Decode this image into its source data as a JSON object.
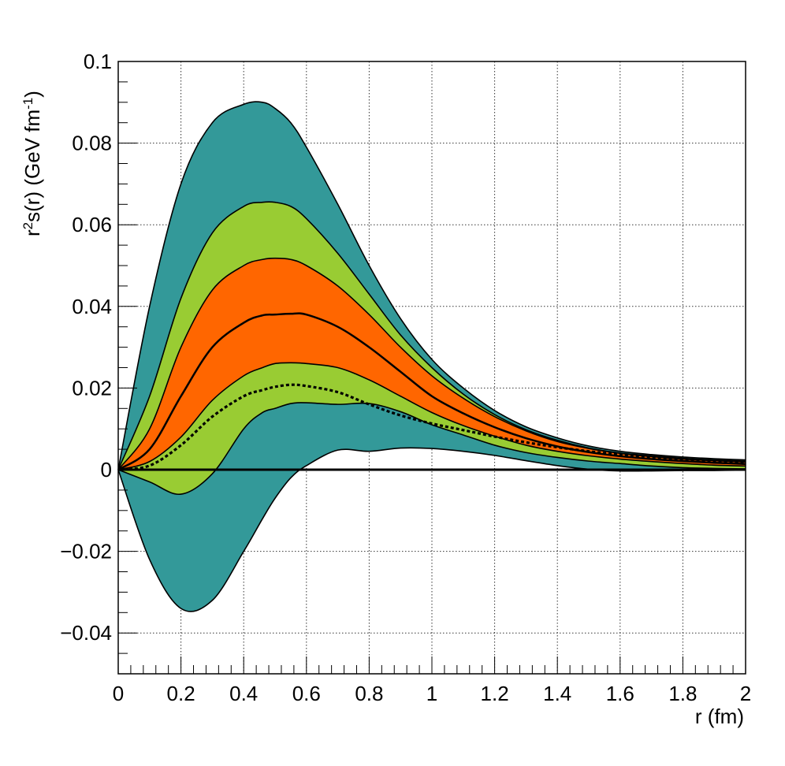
{
  "chart_data": {
    "type": "area",
    "xlabel": "r (fm)",
    "ylabel": {
      "prefix": "r",
      "sup1": "2",
      "mid": "s(r) (GeV fm",
      "sup2": "-1",
      "suffix": ")"
    },
    "xlim": [
      0,
      2
    ],
    "ylim": [
      -0.05,
      0.1
    ],
    "x_ticks": [
      "0",
      "0.2",
      "0.4",
      "0.6",
      "0.8",
      "1",
      "1.2",
      "1.4",
      "1.6",
      "1.8",
      "2"
    ],
    "y_ticks": [
      "−0.04",
      "−0.02",
      "0",
      "0.02",
      "0.04",
      "0.06",
      "0.08",
      "0.1"
    ],
    "grid": true,
    "colors": {
      "outer_band": "#339999",
      "middle_band": "#99cc33",
      "inner_band": "#ff6600",
      "line": "#000000"
    },
    "x": [
      0,
      0.1,
      0.2,
      0.3,
      0.4,
      0.46,
      0.5,
      0.55,
      0.6,
      0.7,
      0.8,
      0.9,
      1.0,
      1.1,
      1.2,
      1.3,
      1.4,
      1.5,
      1.6,
      1.7,
      1.8,
      1.9,
      2.0
    ],
    "bands": [
      {
        "name": "outer",
        "color": "#339999",
        "upper": [
          0,
          0.04,
          0.07,
          0.085,
          0.0895,
          0.09,
          0.0885,
          0.085,
          0.079,
          0.065,
          0.05,
          0.037,
          0.027,
          0.02,
          0.0145,
          0.0105,
          0.0078,
          0.0058,
          0.0045,
          0.0037,
          0.0031,
          0.0027,
          0.0024
        ],
        "lower": [
          0,
          -0.022,
          -0.034,
          -0.032,
          -0.02,
          -0.012,
          -0.007,
          -0.002,
          0.001,
          0.0048,
          0.0045,
          0.0053,
          0.0052,
          0.0045,
          0.0035,
          0.0022,
          0.001,
          0.0001,
          -0.0003,
          -0.0003,
          -0.0002,
          -0.0002,
          -0.0001
        ]
      },
      {
        "name": "middle",
        "color": "#99cc33",
        "upper": [
          0,
          0.018,
          0.042,
          0.058,
          0.0645,
          0.0655,
          0.0655,
          0.0645,
          0.0615,
          0.053,
          0.043,
          0.033,
          0.025,
          0.0185,
          0.0135,
          0.0098,
          0.0072,
          0.0053,
          0.0041,
          0.0034,
          0.0028,
          0.0024,
          0.0021
        ],
        "lower": [
          0,
          -0.003,
          -0.006,
          -0.001,
          0.01,
          0.014,
          0.015,
          0.0162,
          0.0164,
          0.016,
          0.0162,
          0.0142,
          0.011,
          0.0085,
          0.006,
          0.0042,
          0.003,
          0.0021,
          0.0015,
          0.0009,
          0.0005,
          0.0003,
          0.0002
        ]
      },
      {
        "name": "inner",
        "color": "#ff6600",
        "upper": [
          0,
          0.01,
          0.03,
          0.044,
          0.05,
          0.0515,
          0.0518,
          0.0515,
          0.05,
          0.045,
          0.038,
          0.03,
          0.023,
          0.0175,
          0.013,
          0.0095,
          0.0069,
          0.0052,
          0.004,
          0.0032,
          0.0026,
          0.0022,
          0.0019
        ],
        "lower": [
          0,
          0.002,
          0.008,
          0.017,
          0.023,
          0.025,
          0.026,
          0.0262,
          0.026,
          0.025,
          0.022,
          0.018,
          0.014,
          0.0108,
          0.0082,
          0.006,
          0.0045,
          0.0034,
          0.0026,
          0.002,
          0.0015,
          0.0011,
          0.0009
        ]
      }
    ],
    "central": [
      0,
      0.005,
      0.018,
      0.03,
      0.036,
      0.0378,
      0.038,
      0.0382,
      0.038,
      0.035,
      0.03,
      0.024,
      0.018,
      0.0138,
      0.0104,
      0.0077,
      0.0057,
      0.0043,
      0.0033,
      0.0026,
      0.0021,
      0.0017,
      0.0014
    ],
    "dashed": [
      0,
      0.001,
      0.006,
      0.013,
      0.018,
      0.0195,
      0.0203,
      0.0208,
      0.0205,
      0.019,
      0.016,
      0.0133,
      0.0113,
      0.0097,
      0.0081,
      0.0067,
      0.0055,
      0.0045,
      0.0037,
      0.003,
      0.0024,
      0.0019,
      0.0015
    ],
    "zero_line": 0
  }
}
